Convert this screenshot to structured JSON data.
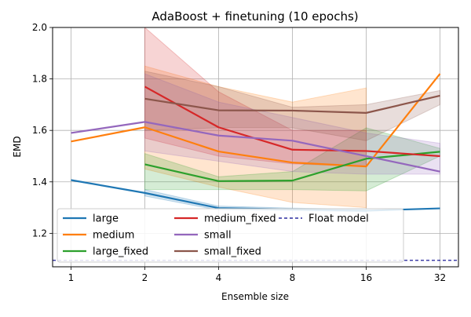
{
  "chart_data": {
    "type": "line",
    "title": "AdaBoost + finetuning (10 epochs)",
    "xlabel": "Ensemble size",
    "ylabel": "EMD",
    "x": [
      1,
      2,
      4,
      8,
      16,
      32
    ],
    "x_tick_labels": [
      "1",
      "2",
      "4",
      "8",
      "16",
      "32"
    ],
    "x_scale": "log2",
    "ylim": [
      1.07,
      2.0
    ],
    "y_ticks": [
      1.2,
      1.4,
      1.6,
      1.8,
      2.0
    ],
    "y_tick_labels": [
      "1.2",
      "1.4",
      "1.6",
      "1.8",
      "2.0"
    ],
    "grid": true,
    "legend": {
      "placement": "lower-left",
      "columns": 3
    },
    "series": [
      {
        "name": "large",
        "color": "#1f77b4",
        "values": [
          1.407,
          1.357,
          1.298,
          1.293,
          1.288,
          1.297
        ],
        "band_lower": [
          null,
          1.345,
          1.29,
          1.288,
          1.283,
          null
        ],
        "band_upper": [
          null,
          1.37,
          1.306,
          1.298,
          1.293,
          null
        ]
      },
      {
        "name": "medium",
        "color": "#ff7f0e",
        "values": [
          1.557,
          1.612,
          1.518,
          1.475,
          1.46,
          1.82
        ],
        "band_lower": [
          null,
          1.45,
          1.38,
          1.32,
          1.3,
          null
        ],
        "band_upper": [
          null,
          1.85,
          1.77,
          1.71,
          1.765,
          null
        ]
      },
      {
        "name": "large_fixed",
        "color": "#2ca02c",
        "values": [
          null,
          1.468,
          1.403,
          1.405,
          1.49,
          1.517
        ],
        "band_lower": [
          null,
          1.37,
          1.37,
          1.37,
          1.365,
          1.5
        ],
        "band_upper": [
          null,
          1.51,
          1.42,
          1.44,
          1.61,
          1.53
        ]
      },
      {
        "name": "medium_fixed",
        "color": "#d62728",
        "values": [
          null,
          1.77,
          1.612,
          1.525,
          1.52,
          1.5
        ],
        "band_lower": [
          null,
          1.57,
          1.5,
          1.47,
          1.46,
          null
        ],
        "band_upper": [
          null,
          2.0,
          1.75,
          1.6,
          1.6,
          null
        ]
      },
      {
        "name": "small",
        "color": "#9467bd",
        "values": [
          1.59,
          1.633,
          1.58,
          1.56,
          1.5,
          1.44
        ],
        "band_lower": [
          null,
          1.52,
          1.48,
          1.44,
          1.43,
          1.43
        ],
        "band_upper": [
          null,
          1.82,
          1.71,
          1.65,
          1.59,
          1.55
        ]
      },
      {
        "name": "small_fixed",
        "color": "#8c564b",
        "values": [
          null,
          1.723,
          1.678,
          1.677,
          1.668,
          1.735
        ],
        "band_lower": [
          null,
          1.6,
          1.61,
          1.61,
          1.56,
          1.7
        ],
        "band_upper": [
          null,
          1.83,
          1.77,
          1.69,
          1.7,
          1.755
        ]
      }
    ],
    "reference_lines": [
      {
        "name": "Float model",
        "y": 1.095,
        "color": "#00008b",
        "style": "dashed"
      }
    ]
  }
}
